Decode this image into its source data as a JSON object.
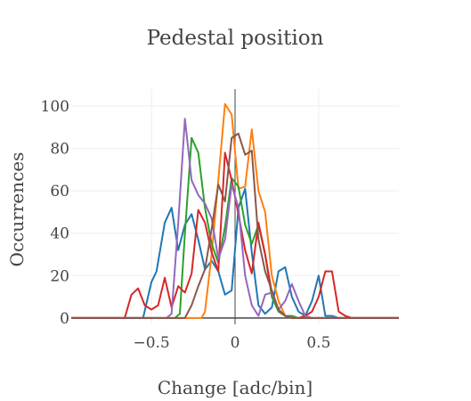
{
  "chart_data": {
    "type": "line",
    "title": "Pedestal position",
    "xlabel": "Change [adc/bin]",
    "ylabel": "Occurrences",
    "xlim": [
      -0.98,
      0.98
    ],
    "ylim": [
      -3,
      108
    ],
    "xticks": [
      -0.5,
      0,
      0.5
    ],
    "xtick_labels": [
      "−0.5",
      "0",
      "0.5"
    ],
    "yticks": [
      0,
      20,
      40,
      60,
      80,
      100
    ],
    "ytick_labels": [
      "0",
      "20",
      "40",
      "60",
      "80",
      "100"
    ],
    "grid": true,
    "legend": "none",
    "series": [
      {
        "color": "#1f77b4",
        "x": [
          -1.0,
          -0.55,
          -0.5,
          -0.47,
          -0.42,
          -0.38,
          -0.34,
          -0.3,
          -0.26,
          -0.22,
          -0.18,
          -0.14,
          -0.1,
          -0.06,
          -0.02,
          0.02,
          0.06,
          0.1,
          0.14,
          0.18,
          0.22,
          0.26,
          0.3,
          0.34,
          0.38,
          0.42,
          0.46,
          0.5,
          0.54,
          0.58,
          0.62,
          1.0
        ],
        "y": [
          0,
          0,
          17,
          22,
          45,
          52,
          32,
          44,
          49,
          37,
          23,
          27,
          22,
          11,
          13,
          52,
          61,
          31,
          6,
          2,
          5,
          22,
          24,
          10,
          3,
          1,
          8,
          20,
          1,
          1,
          0,
          0
        ]
      },
      {
        "color": "#ff7f0e",
        "x": [
          -1.0,
          -0.2,
          -0.18,
          -0.14,
          -0.1,
          -0.06,
          -0.02,
          0.02,
          0.06,
          0.1,
          0.14,
          0.18,
          0.22,
          0.26,
          0.3,
          0.34,
          1.0
        ],
        "y": [
          0,
          0,
          3,
          30,
          65,
          101,
          96,
          61,
          62,
          89,
          60,
          50,
          20,
          8,
          1,
          0,
          0
        ]
      },
      {
        "color": "#2ca02c",
        "x": [
          -1.0,
          -0.36,
          -0.33,
          -0.3,
          -0.26,
          -0.22,
          -0.18,
          -0.14,
          -0.1,
          -0.06,
          -0.02,
          0.02,
          0.06,
          0.1,
          0.14,
          0.18,
          0.22,
          0.26,
          0.3,
          0.34,
          0.38,
          1.0
        ],
        "y": [
          0,
          0,
          2,
          40,
          85,
          78,
          52,
          35,
          26,
          43,
          66,
          62,
          44,
          35,
          44,
          30,
          10,
          3,
          1,
          1,
          0,
          0
        ]
      },
      {
        "color": "#d62728",
        "x": [
          -1.0,
          -0.66,
          -0.62,
          -0.58,
          -0.54,
          -0.5,
          -0.46,
          -0.42,
          -0.38,
          -0.34,
          -0.3,
          -0.26,
          -0.22,
          -0.18,
          -0.14,
          -0.1,
          -0.06,
          -0.02,
          0.02,
          0.06,
          0.1,
          0.14,
          0.18,
          0.22,
          0.26,
          0.3,
          0.34,
          0.38,
          0.42,
          0.46,
          0.5,
          0.54,
          0.58,
          0.62,
          0.66,
          0.7,
          1.0
        ],
        "y": [
          0,
          0,
          11,
          14,
          6,
          4,
          6,
          19,
          5,
          15,
          12,
          21,
          51,
          45,
          31,
          22,
          78,
          65,
          49,
          32,
          21,
          45,
          30,
          12,
          4,
          1,
          0,
          0,
          1,
          3,
          10,
          22,
          22,
          3,
          1,
          0,
          0
        ]
      },
      {
        "color": "#9467bd",
        "x": [
          -1.0,
          -0.41,
          -0.38,
          -0.34,
          -0.3,
          -0.26,
          -0.22,
          -0.18,
          -0.14,
          -0.1,
          -0.06,
          -0.02,
          0.02,
          0.06,
          0.1,
          0.14,
          0.18,
          0.22,
          0.26,
          0.3,
          0.34,
          0.38,
          0.42,
          0.46,
          1.0
        ],
        "y": [
          0,
          0,
          2,
          45,
          94,
          65,
          58,
          54,
          47,
          28,
          37,
          63,
          52,
          20,
          6,
          1,
          11,
          12,
          4,
          8,
          16,
          8,
          1,
          0,
          0
        ]
      },
      {
        "color": "#8c564b",
        "x": [
          -1.0,
          -0.3,
          -0.26,
          -0.22,
          -0.18,
          -0.14,
          -0.1,
          -0.06,
          -0.02,
          0.02,
          0.06,
          0.1,
          0.14,
          0.18,
          0.22,
          0.26,
          0.3,
          0.34,
          0.38,
          1.0
        ],
        "y": [
          0,
          0,
          6,
          15,
          23,
          42,
          63,
          55,
          85,
          87,
          77,
          79,
          37,
          22,
          13,
          4,
          1,
          0,
          0,
          0
        ]
      }
    ]
  }
}
